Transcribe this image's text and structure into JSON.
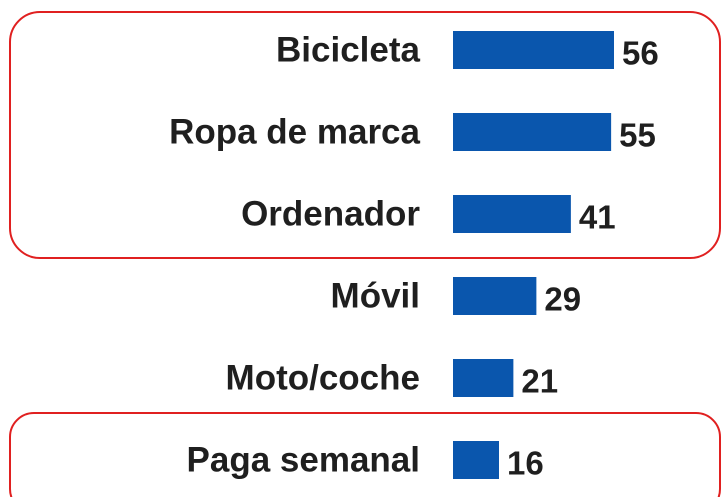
{
  "chart_data": {
    "type": "bar",
    "categories": [
      "Bicicleta",
      "Ropa de marca",
      "Ordenador",
      "Móvil",
      "Moto/coche",
      "Paga semanal"
    ],
    "values": [
      56,
      55,
      41,
      29,
      21,
      16
    ],
    "color": "#0a56ad"
  }
}
